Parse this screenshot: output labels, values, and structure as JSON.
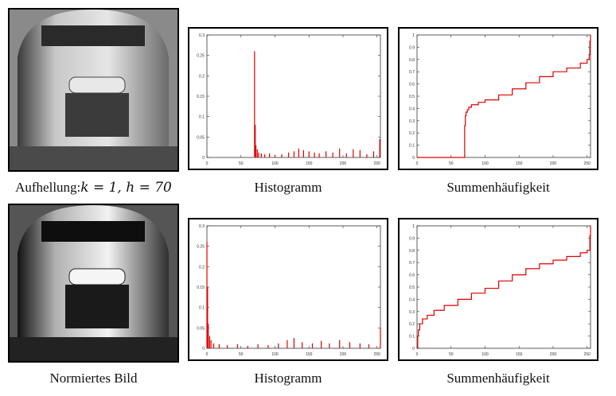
{
  "rows": [
    {
      "image_caption_prefix": "Aufhellung:",
      "image_caption_math": "k = 1, h = 70",
      "hist_caption": "Histogramm",
      "cum_caption": "Summenhäufigkeit"
    },
    {
      "image_caption_prefix": "Normiertes Bild",
      "image_caption_math": "",
      "hist_caption": "Histogramm",
      "cum_caption": "Summenhäufigkeit"
    }
  ],
  "colors": {
    "series": "#e00000",
    "frame": "#000000",
    "axes": "#333333"
  },
  "chart_data": [
    {
      "type": "bar",
      "title": "",
      "xlim": [
        0,
        255
      ],
      "ylim": [
        0,
        0.3
      ],
      "xticks": [
        0,
        50,
        100,
        150,
        200,
        250
      ],
      "yticks": [
        0,
        0.05,
        0.1,
        0.15,
        0.2,
        0.25,
        0.3
      ],
      "bars": [
        {
          "x": 70,
          "y": 0.26
        },
        {
          "x": 71,
          "y": 0.08
        },
        {
          "x": 72,
          "y": 0.03
        },
        {
          "x": 74,
          "y": 0.02
        },
        {
          "x": 76,
          "y": 0.012
        },
        {
          "x": 80,
          "y": 0.01
        },
        {
          "x": 85,
          "y": 0.008
        },
        {
          "x": 92,
          "y": 0.01
        },
        {
          "x": 100,
          "y": 0.006
        },
        {
          "x": 110,
          "y": 0.008
        },
        {
          "x": 120,
          "y": 0.012
        },
        {
          "x": 128,
          "y": 0.015
        },
        {
          "x": 135,
          "y": 0.022
        },
        {
          "x": 142,
          "y": 0.018
        },
        {
          "x": 150,
          "y": 0.015
        },
        {
          "x": 158,
          "y": 0.012
        },
        {
          "x": 165,
          "y": 0.01
        },
        {
          "x": 175,
          "y": 0.015
        },
        {
          "x": 185,
          "y": 0.012
        },
        {
          "x": 195,
          "y": 0.022
        },
        {
          "x": 205,
          "y": 0.01
        },
        {
          "x": 215,
          "y": 0.02
        },
        {
          "x": 225,
          "y": 0.018
        },
        {
          "x": 235,
          "y": 0.008
        },
        {
          "x": 245,
          "y": 0.015
        },
        {
          "x": 254,
          "y": 0.045
        }
      ]
    },
    {
      "type": "line",
      "title": "",
      "xlim": [
        0,
        255
      ],
      "ylim": [
        0,
        1
      ],
      "xticks": [
        0,
        50,
        100,
        150,
        200,
        250
      ],
      "yticks": [
        0,
        0.1,
        0.2,
        0.3,
        0.4,
        0.5,
        0.6,
        0.7,
        0.8,
        0.9,
        1
      ],
      "x": [
        0,
        69,
        70,
        71,
        72,
        74,
        76,
        80,
        90,
        100,
        120,
        140,
        160,
        180,
        200,
        220,
        240,
        250,
        253,
        254,
        255
      ],
      "y": [
        0,
        0,
        0.26,
        0.34,
        0.37,
        0.39,
        0.41,
        0.43,
        0.45,
        0.47,
        0.51,
        0.56,
        0.61,
        0.66,
        0.7,
        0.73,
        0.77,
        0.8,
        0.84,
        0.95,
        1.0
      ]
    },
    {
      "type": "bar",
      "title": "",
      "xlim": [
        0,
        255
      ],
      "ylim": [
        0,
        0.3
      ],
      "xticks": [
        0,
        50,
        100,
        150,
        200,
        250
      ],
      "yticks": [
        0,
        0.05,
        0.1,
        0.15,
        0.2,
        0.25,
        0.3
      ],
      "bars": [
        {
          "x": 0,
          "y": 0.26
        },
        {
          "x": 1,
          "y": 0.15
        },
        {
          "x": 2,
          "y": 0.06
        },
        {
          "x": 4,
          "y": 0.03
        },
        {
          "x": 6,
          "y": 0.02
        },
        {
          "x": 10,
          "y": 0.012
        },
        {
          "x": 18,
          "y": 0.01
        },
        {
          "x": 30,
          "y": 0.008
        },
        {
          "x": 45,
          "y": 0.01
        },
        {
          "x": 60,
          "y": 0.006
        },
        {
          "x": 75,
          "y": 0.01
        },
        {
          "x": 90,
          "y": 0.008
        },
        {
          "x": 105,
          "y": 0.012
        },
        {
          "x": 118,
          "y": 0.02
        },
        {
          "x": 128,
          "y": 0.025
        },
        {
          "x": 140,
          "y": 0.015
        },
        {
          "x": 155,
          "y": 0.012
        },
        {
          "x": 168,
          "y": 0.018
        },
        {
          "x": 180,
          "y": 0.012
        },
        {
          "x": 195,
          "y": 0.02
        },
        {
          "x": 210,
          "y": 0.015
        },
        {
          "x": 225,
          "y": 0.012
        },
        {
          "x": 238,
          "y": 0.01
        },
        {
          "x": 255,
          "y": 0.05
        }
      ]
    },
    {
      "type": "line",
      "title": "",
      "xlim": [
        0,
        255
      ],
      "ylim": [
        0,
        1
      ],
      "xticks": [
        0,
        50,
        100,
        150,
        200,
        250
      ],
      "yticks": [
        0,
        0.1,
        0.2,
        0.3,
        0.4,
        0.5,
        0.6,
        0.7,
        0.8,
        0.9,
        1
      ],
      "x": [
        0,
        1,
        2,
        4,
        8,
        15,
        25,
        40,
        60,
        80,
        100,
        120,
        140,
        160,
        180,
        200,
        220,
        240,
        250,
        254,
        255
      ],
      "y": [
        0,
        0.1,
        0.15,
        0.2,
        0.24,
        0.27,
        0.31,
        0.35,
        0.4,
        0.45,
        0.49,
        0.55,
        0.6,
        0.65,
        0.69,
        0.72,
        0.75,
        0.78,
        0.8,
        0.92,
        1.0
      ]
    }
  ]
}
